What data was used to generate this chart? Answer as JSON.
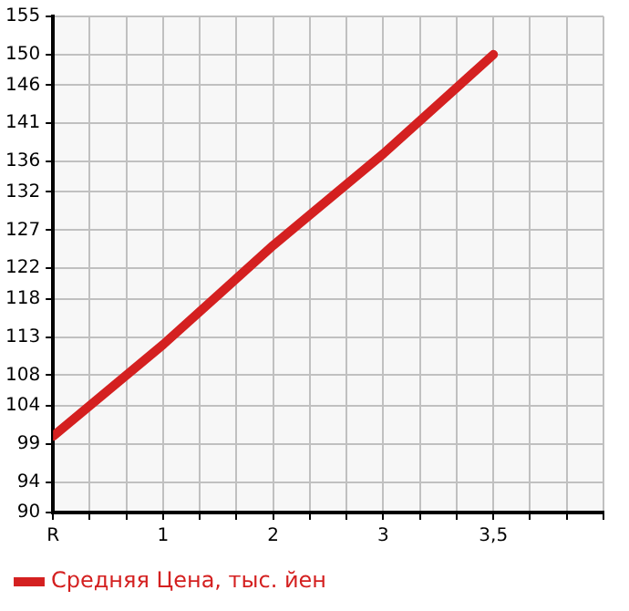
{
  "chart_data": {
    "type": "line",
    "categories": [
      "R",
      "1",
      "2",
      "3",
      "3,5"
    ],
    "series": [
      {
        "name": "Средняя Цена, тыс. йен",
        "color": "#d42020",
        "values": [
          100,
          112,
          125,
          137,
          150
        ]
      }
    ],
    "ylim": [
      90,
      155
    ],
    "yticks": [
      90,
      94,
      99,
      104,
      108,
      113,
      118,
      122,
      127,
      132,
      136,
      141,
      146,
      150,
      155
    ],
    "grid": true,
    "legend": "bottom",
    "marker": "none",
    "line_style": "solid"
  }
}
